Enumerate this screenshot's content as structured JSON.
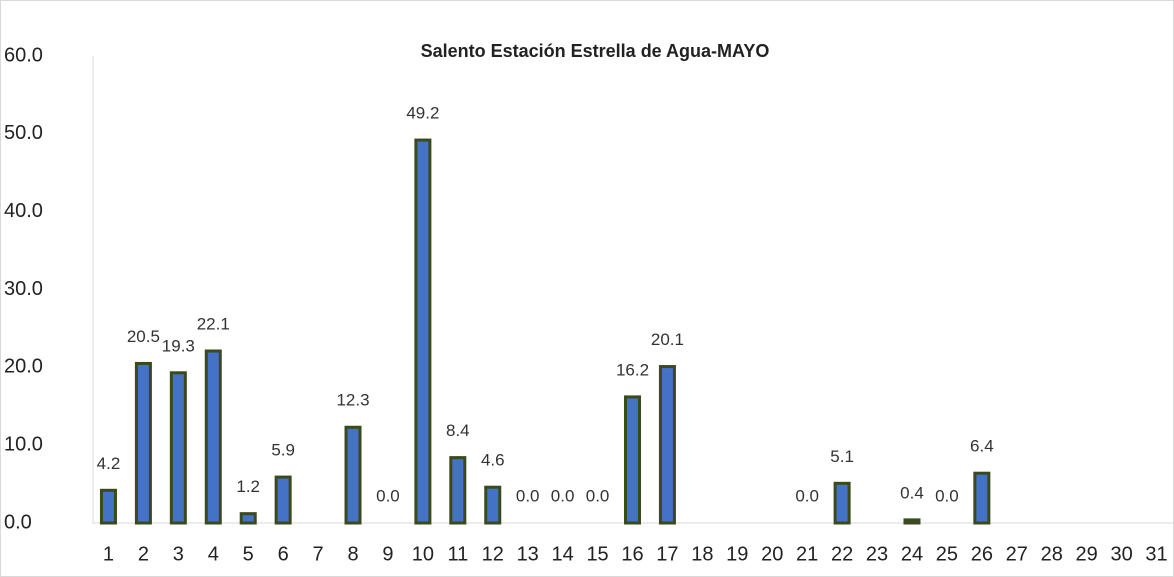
{
  "chart_data": {
    "type": "bar",
    "title": "Salento Estación Estrella de Agua-MAYO",
    "categories": [
      "1",
      "2",
      "3",
      "4",
      "5",
      "6",
      "7",
      "8",
      "9",
      "10",
      "11",
      "12",
      "13",
      "14",
      "15",
      "16",
      "17",
      "18",
      "19",
      "20",
      "21",
      "22",
      "23",
      "24",
      "25",
      "26",
      "27",
      "28",
      "29",
      "30",
      "31"
    ],
    "values": [
      4.2,
      20.5,
      19.3,
      22.1,
      1.2,
      5.9,
      null,
      12.3,
      0,
      49.2,
      8.4,
      4.6,
      0,
      0,
      0,
      16.2,
      20.1,
      null,
      null,
      null,
      0,
      5.1,
      null,
      0.4,
      0,
      6.4,
      null,
      null,
      null,
      null,
      null
    ],
    "value_labels": [
      "4.2",
      "20.5",
      "19.3",
      "22.1",
      "1.2",
      "5.9",
      null,
      "12.3",
      "0.0",
      "49.2",
      "8.4",
      "4.6",
      "0.0",
      "0.0",
      "0.0",
      "16.2",
      "20.1",
      null,
      null,
      null,
      "0.0",
      "5.1",
      null,
      "0.4",
      "0.0",
      "6.4",
      null,
      null,
      null,
      null,
      null
    ],
    "color": "#4472c4",
    "edge_color": "#3b4a1c",
    "ylim": [
      0,
      60
    ],
    "yticks": [
      {
        "value": 0,
        "label": "0.0"
      },
      {
        "value": 10,
        "label": "10.0"
      },
      {
        "value": 20,
        "label": "20.0"
      },
      {
        "value": 30,
        "label": "30.0"
      },
      {
        "value": 40,
        "label": "40.0"
      },
      {
        "value": 50,
        "label": "50.0"
      },
      {
        "value": 60,
        "label": "60.0"
      }
    ],
    "grid": false
  }
}
